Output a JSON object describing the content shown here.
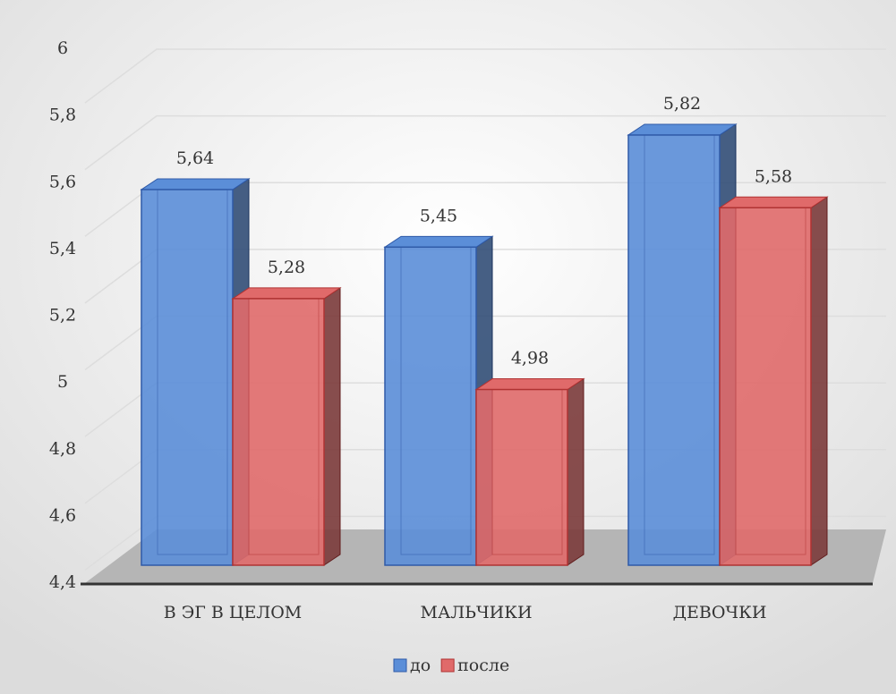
{
  "chart_data": {
    "type": "bar3d",
    "categories": [
      "В ЭГ В ЦЕЛОМ",
      "МАЛЬЧИКИ",
      "ДЕВОЧКИ"
    ],
    "series": [
      {
        "name": "до",
        "color": "#5b8ed8",
        "values": [
          5.64,
          5.45,
          5.82
        ],
        "value_labels": [
          "5,64",
          "5,45",
          "5,82"
        ]
      },
      {
        "name": "после",
        "color": "#e06a6a",
        "values": [
          5.28,
          4.98,
          5.58
        ],
        "value_labels": [
          "5,28",
          "4,98",
          "5,58"
        ]
      }
    ],
    "ylim": [
      4.4,
      6
    ],
    "yticks": [
      {
        "value": 4.4,
        "label": "4,4"
      },
      {
        "value": 4.6,
        "label": "4,6"
      },
      {
        "value": 4.8,
        "label": "4,8"
      },
      5,
      {
        "value": 5.2,
        "label": "5,2"
      },
      {
        "value": 5.4,
        "label": "5,4"
      },
      {
        "value": 5.6,
        "label": "5,6"
      },
      {
        "value": 5.8,
        "label": "5,8"
      },
      6
    ],
    "grid": true,
    "legend": "bottom"
  }
}
